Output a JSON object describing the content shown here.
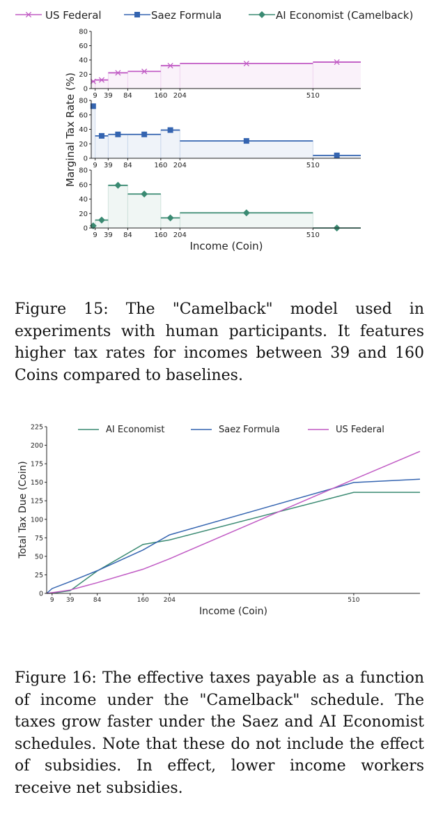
{
  "figure1": {
    "caption": "Figure 15: The \"Camelback\" model used in experiments with human participants. It features higher tax rates for incomes between 39 and 160 Coins compared to baselines.",
    "chart_data": {
      "type": "step",
      "xlabel": "Income (Coin)",
      "ylabel": "Marginal Tax Rate (%)",
      "xticks": [
        9,
        39,
        84,
        160,
        204,
        510
      ],
      "yticks": [
        0,
        20,
        40,
        60,
        80
      ],
      "xlim": [
        0,
        620
      ],
      "ylim": [
        0,
        80
      ],
      "legend_position": "top",
      "brackets": [
        0,
        9,
        39,
        84,
        160,
        204,
        510,
        620
      ],
      "series": [
        {
          "name": "US Federal",
          "color": "#c05ac4",
          "marker": "x",
          "values": [
            10,
            12,
            22,
            24,
            32,
            35,
            37
          ]
        },
        {
          "name": "Saez Formula",
          "color": "#3464b0",
          "marker": "s",
          "values": [
            72,
            31,
            33,
            33,
            39,
            24,
            4
          ]
        },
        {
          "name": "AI Economist (Camelback)",
          "color": "#3a8a72",
          "marker": "D",
          "values": [
            3,
            11,
            59,
            47,
            14,
            21,
            0
          ]
        }
      ]
    }
  },
  "figure2": {
    "caption": "Figure 16: The effective taxes payable as a function of income under the \"Camelback\" schedule. The taxes grow faster under the Saez and AI Economist schedules. Note that these do not include the effect of subsidies. In effect, lower income workers receive net subsidies.",
    "chart_data": {
      "type": "line",
      "xlabel": "Income (Coin)",
      "ylabel": "Total Tax Due (Coin)",
      "xticks": [
        9,
        39,
        84,
        160,
        204,
        510
      ],
      "yticks": [
        0,
        25,
        50,
        75,
        100,
        125,
        150,
        175,
        200,
        225
      ],
      "xlim": [
        0,
        620
      ],
      "ylim": [
        0,
        225
      ],
      "legend_position": "top",
      "x": [
        0,
        9,
        39,
        84,
        160,
        204,
        510,
        620
      ],
      "series": [
        {
          "name": "AI Economist",
          "color": "#3a8a72",
          "values": [
            0,
            0.3,
            3.6,
            30.2,
            66.0,
            72.1,
            136.4,
            136.4
          ]
        },
        {
          "name": "Saez Formula",
          "color": "#3464b0",
          "values": [
            0,
            6.5,
            15.8,
            30.6,
            58.6,
            79.0,
            149.7,
            154.1
          ]
        },
        {
          "name": "US Federal",
          "color": "#c05ac4",
          "values": [
            0,
            0.9,
            4.5,
            14.4,
            32.6,
            46.7,
            153.8,
            191.8
          ]
        }
      ]
    }
  }
}
